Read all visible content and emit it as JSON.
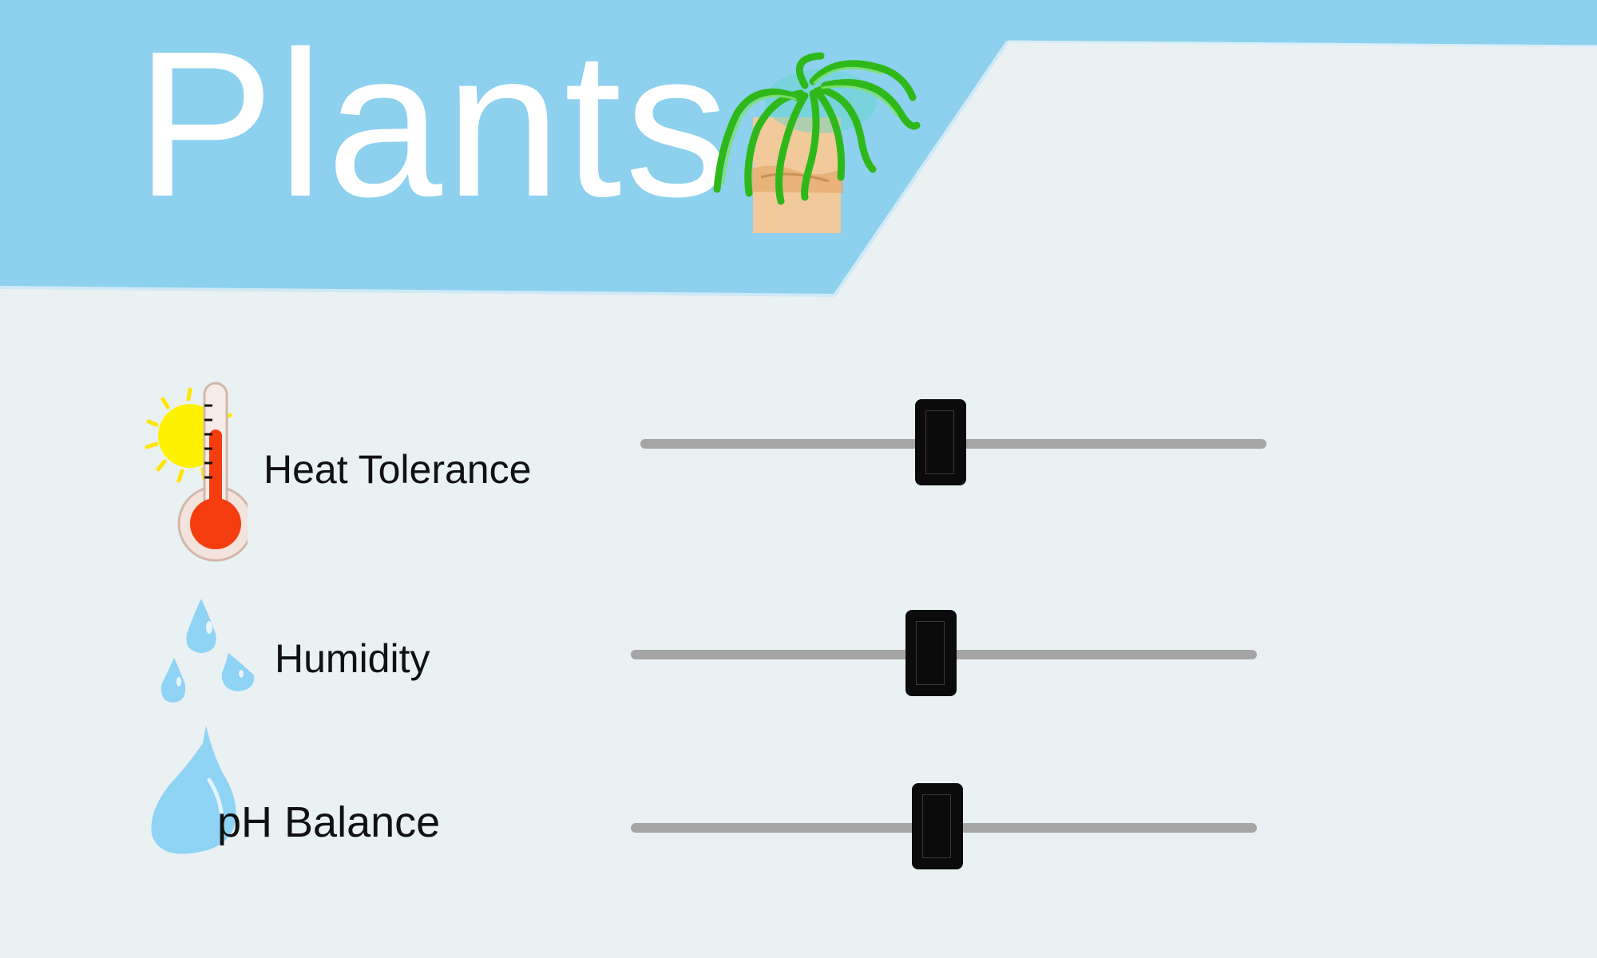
{
  "header": {
    "title": "Plants",
    "banner_color": "#8dd1ee",
    "title_color": "#ffffff",
    "illustration_icon": "potted-plant-icon"
  },
  "controls": [
    {
      "id": "heat-tolerance",
      "label": "Heat Tolerance",
      "icon": "thermometer-sun-icon",
      "value": 0.48
    },
    {
      "id": "humidity",
      "label": "Humidity",
      "icon": "water-drops-icon",
      "value": 0.48
    },
    {
      "id": "ph-balance",
      "label": "pH Balance",
      "icon": "water-drop-icon",
      "value": 0.49
    }
  ],
  "colors": {
    "background": "#e9f1f2",
    "slider_track": "#a5a5a5",
    "slider_thumb": "#0b0b0b",
    "water": "#8fd3f5",
    "thermometer_fluid": "#f53d10",
    "sun": "#fff200",
    "leaf": "#3cc21f",
    "pot": "#f2c99a"
  }
}
